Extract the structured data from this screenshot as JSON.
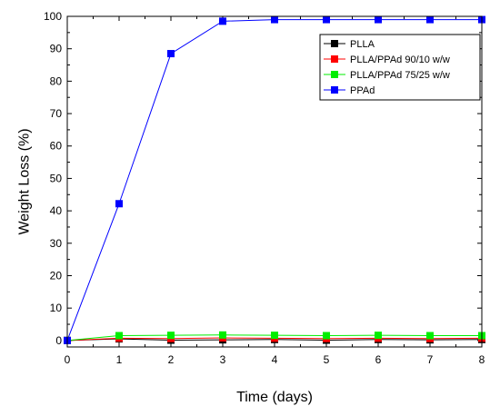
{
  "chart_data": {
    "type": "line",
    "title": "",
    "xlabel": "Time (days)",
    "ylabel": "Weight Loss (%)",
    "xlim": [
      0,
      8
    ],
    "ylim": [
      -2,
      100
    ],
    "x_ticks": [
      0,
      1,
      2,
      3,
      4,
      5,
      6,
      7,
      8
    ],
    "y_ticks": [
      0,
      10,
      20,
      30,
      40,
      50,
      60,
      70,
      80,
      90,
      100
    ],
    "grid": false,
    "legend_position": "top-right",
    "series": [
      {
        "name": "PLLA",
        "color": "#000000",
        "marker": "square",
        "x": [
          0,
          1,
          2,
          3,
          4,
          5,
          6,
          7,
          8
        ],
        "values": [
          0.0,
          0.5,
          0.1,
          0.2,
          0.3,
          0.1,
          0.3,
          0.2,
          0.3
        ]
      },
      {
        "name": "PLLA/PPAd 90/10 w/w",
        "color": "#ff0000",
        "marker": "square",
        "x": [
          0,
          1,
          2,
          3,
          4,
          5,
          6,
          7,
          8
        ],
        "values": [
          0.0,
          0.7,
          0.6,
          0.8,
          0.7,
          0.6,
          0.7,
          0.6,
          0.7
        ]
      },
      {
        "name": "PLLA/PPAd 75/25 w/w",
        "color": "#00ee00",
        "marker": "square",
        "x": [
          0,
          1,
          2,
          3,
          4,
          5,
          6,
          7,
          8
        ],
        "values": [
          0.0,
          1.5,
          1.6,
          1.7,
          1.6,
          1.5,
          1.6,
          1.5,
          1.5
        ]
      },
      {
        "name": "PPAd",
        "color": "#0000ff",
        "marker": "square",
        "x": [
          0,
          1,
          2,
          3,
          4,
          5,
          6,
          7,
          8
        ],
        "values": [
          0.0,
          42.2,
          88.5,
          98.5,
          99.0,
          99.0,
          99.0,
          99.0,
          99.0
        ]
      }
    ]
  }
}
